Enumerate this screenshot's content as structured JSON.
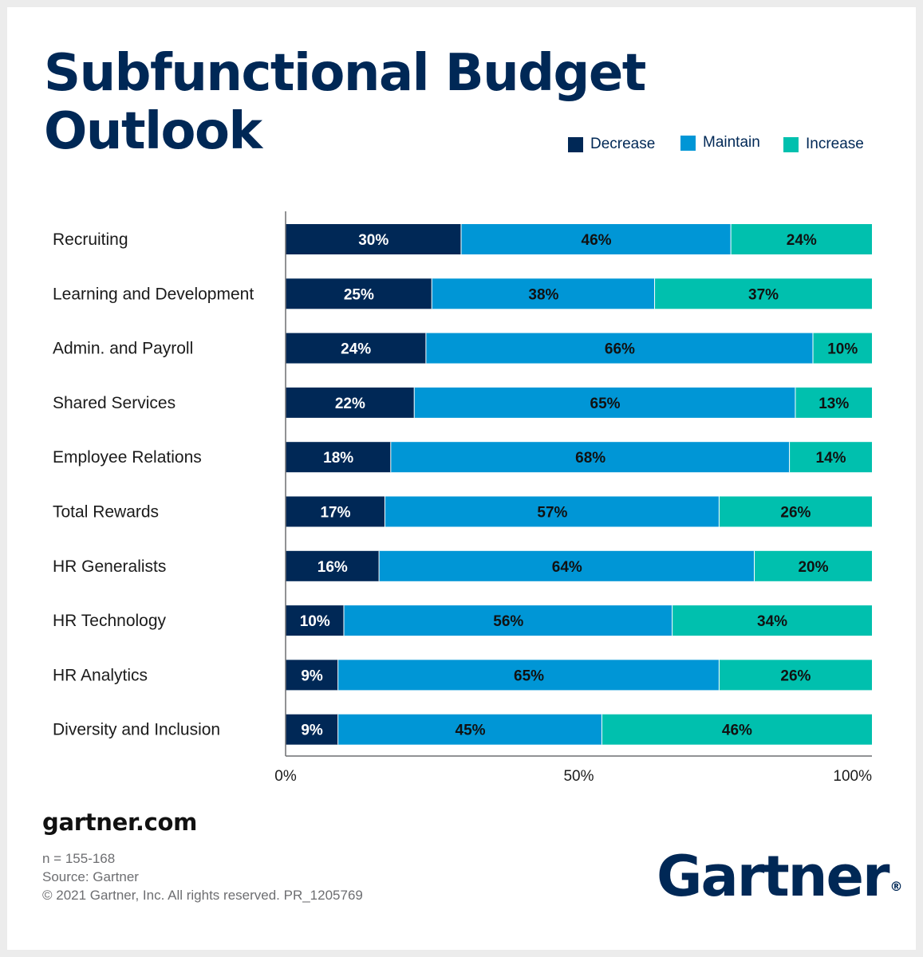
{
  "title_lines": [
    "Subfunctional Budget",
    "Outlook"
  ],
  "legend": [
    {
      "label": "Decrease",
      "color": "#002856"
    },
    {
      "label": "Maintain",
      "color": "#0096d6"
    },
    {
      "label": "Increase",
      "color": "#00c0ae"
    }
  ],
  "chart_data": {
    "type": "bar",
    "orientation": "horizontal",
    "stacked": true,
    "title": "Subfunctional Budget Outlook",
    "categories": [
      "Recruiting",
      "Learning and Development",
      "Admin. and Payroll",
      "Shared Services",
      "Employee Relations",
      "Total Rewards",
      "HR Generalists",
      "HR Technology",
      "HR Analytics",
      "Diversity and Inclusion"
    ],
    "series": [
      {
        "name": "Decrease",
        "color": "#002856",
        "values": [
          30,
          25,
          24,
          22,
          18,
          17,
          16,
          10,
          9,
          9
        ]
      },
      {
        "name": "Maintain",
        "color": "#0096d6",
        "values": [
          46,
          38,
          66,
          65,
          68,
          57,
          64,
          56,
          65,
          45
        ]
      },
      {
        "name": "Increase",
        "color": "#00c0ae",
        "values": [
          24,
          37,
          10,
          13,
          14,
          26,
          20,
          34,
          26,
          46
        ]
      }
    ],
    "xlim": [
      0,
      100
    ],
    "xticks": [
      "0%",
      "50%",
      "100%"
    ],
    "legend_position": "top-right"
  },
  "footer": {
    "site": "gartner.com",
    "notes": [
      "n = 155-168",
      "Source: Gartner",
      "© 2021 Gartner, Inc. All rights reserved. PR_1205769"
    ],
    "logo_text": "Gartner",
    "logo_mark": "®"
  }
}
